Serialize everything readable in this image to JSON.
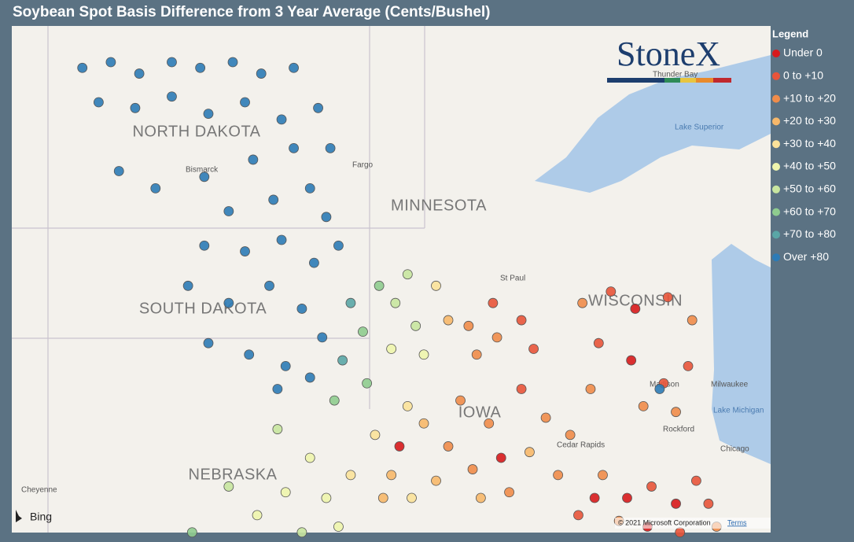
{
  "title": "Soybean Spot Basis Difference from 3 Year Average (Cents/Bushel)",
  "legend": {
    "title": "Legend",
    "items": [
      {
        "label": "Under 0",
        "color": "#d7191c"
      },
      {
        "label": "0 to +10",
        "color": "#e8543a"
      },
      {
        "label": "+10 to +20",
        "color": "#f08c4a"
      },
      {
        "label": "+20 to +30",
        "color": "#f7b86a"
      },
      {
        "label": "+30 to +40",
        "color": "#fbe29a"
      },
      {
        "label": "+40 to +50",
        "color": "#eef5ad"
      },
      {
        "label": "+50 to +60",
        "color": "#c8e6a0"
      },
      {
        "label": "+60 to +70",
        "color": "#8fcc8f"
      },
      {
        "label": "+70 to +80",
        "color": "#5aa6a6"
      },
      {
        "label": "Over +80",
        "color": "#2c7bb6"
      }
    ]
  },
  "logo": "StoneX",
  "map_labels": {
    "north_dakota": "NORTH DAKOTA",
    "minnesota": "MINNESOTA",
    "south_dakota": "SOUTH DAKOTA",
    "wisconsin": "WISCONSIN",
    "nebraska": "NEBRASKA",
    "iowa": "IOWA",
    "bismarck": "Bismarck",
    "fargo": "Fargo",
    "st_paul": "St Paul",
    "madison": "Madison",
    "milwaukee": "Milwaukee",
    "chicago": "Chicago",
    "cedar_rapids": "Cedar Rapids",
    "rockford": "Rockford",
    "cheyenne": "Cheyenne",
    "lake_superior": "Lake Superior",
    "lake_michigan": "Lake Michigan",
    "thunder_bay": "Thunder Bay"
  },
  "attribution": {
    "brand": "Bing",
    "copyright": "© 2021 Microsoft Corporation",
    "terms": "Terms"
  },
  "points": [
    [
      -103.2,
      48.7,
      9
    ],
    [
      -102.5,
      48.8,
      9
    ],
    [
      -101.8,
      48.6,
      9
    ],
    [
      -101,
      48.8,
      9
    ],
    [
      -100.3,
      48.7,
      9
    ],
    [
      -99.5,
      48.8,
      9
    ],
    [
      -98.8,
      48.6,
      9
    ],
    [
      -98,
      48.7,
      9
    ],
    [
      -102.8,
      48.1,
      9
    ],
    [
      -101.9,
      48,
      9
    ],
    [
      -101,
      48.2,
      9
    ],
    [
      -100.1,
      47.9,
      9
    ],
    [
      -99.2,
      48.1,
      9
    ],
    [
      -98.3,
      47.8,
      9
    ],
    [
      -97.4,
      48,
      9
    ],
    [
      -97.1,
      47.3,
      9
    ],
    [
      -98,
      47.3,
      9
    ],
    [
      -99,
      47.1,
      9
    ],
    [
      -100.2,
      46.8,
      9
    ],
    [
      -101.4,
      46.6,
      9
    ],
    [
      -102.3,
      46.9,
      9
    ],
    [
      -97.6,
      46.6,
      9
    ],
    [
      -98.5,
      46.4,
      9
    ],
    [
      -99.6,
      46.2,
      9
    ],
    [
      -97.2,
      46.1,
      9
    ],
    [
      -100.2,
      45.6,
      9
    ],
    [
      -99.2,
      45.5,
      9
    ],
    [
      -98.3,
      45.7,
      9
    ],
    [
      -97.5,
      45.3,
      9
    ],
    [
      -100.6,
      44.9,
      9
    ],
    [
      -99.6,
      44.6,
      9
    ],
    [
      -98.6,
      44.9,
      9
    ],
    [
      -97.8,
      44.5,
      9
    ],
    [
      -100.1,
      43.9,
      9
    ],
    [
      -99.1,
      43.7,
      9
    ],
    [
      -98.2,
      43.5,
      9
    ],
    [
      -97.3,
      44,
      9
    ],
    [
      -96.9,
      45.6,
      9
    ],
    [
      -98.4,
      43.1,
      9
    ],
    [
      -97.6,
      43.3,
      9
    ],
    [
      -96.6,
      44.6,
      8
    ],
    [
      -96.3,
      44.1,
      7
    ],
    [
      -96.8,
      43.6,
      8
    ],
    [
      -95.9,
      44.9,
      7
    ],
    [
      -96.2,
      43.2,
      7
    ],
    [
      -97,
      42.9,
      7
    ],
    [
      -95.5,
      44.6,
      6
    ],
    [
      -95,
      44.2,
      6
    ],
    [
      -95.6,
      43.8,
      5
    ],
    [
      -94.8,
      43.7,
      5
    ],
    [
      -95.2,
      45.1,
      6
    ],
    [
      -94.5,
      44.9,
      4
    ],
    [
      -94.2,
      44.3,
      3
    ],
    [
      -98.4,
      42.4,
      6
    ],
    [
      -97.6,
      41.9,
      5
    ],
    [
      -98.2,
      41.3,
      5
    ],
    [
      -97.2,
      41.2,
      5
    ],
    [
      -96.6,
      41.6,
      4
    ],
    [
      -96.9,
      40.7,
      5
    ],
    [
      -97.8,
      40.6,
      6
    ],
    [
      -98.9,
      40.9,
      5
    ],
    [
      -99.6,
      41.4,
      6
    ],
    [
      -100.5,
      40.6,
      7
    ],
    [
      -96,
      42.3,
      4
    ],
    [
      -95.6,
      41.6,
      3
    ],
    [
      -95.2,
      42.8,
      4
    ],
    [
      -95.8,
      41.2,
      3
    ],
    [
      -95.1,
      41.2,
      4
    ],
    [
      -95.4,
      42.1,
      0
    ],
    [
      -94.8,
      42.5,
      3
    ],
    [
      -94.2,
      42.1,
      2
    ],
    [
      -93.6,
      41.7,
      2
    ],
    [
      -93.2,
      42.5,
      2
    ],
    [
      -92.7,
      41.3,
      2
    ],
    [
      -92.2,
      42,
      3
    ],
    [
      -91.8,
      42.6,
      2
    ],
    [
      -91.5,
      41.6,
      2
    ],
    [
      -93.9,
      42.9,
      2
    ],
    [
      -92.4,
      43.1,
      1
    ],
    [
      -91.2,
      42.3,
      2
    ],
    [
      -93.4,
      41.2,
      3
    ],
    [
      -94.5,
      41.5,
      3
    ],
    [
      -92.9,
      41.9,
      0
    ],
    [
      -93.7,
      44.2,
      2
    ],
    [
      -93,
      44,
      2
    ],
    [
      -92.4,
      44.3,
      1
    ],
    [
      -93.5,
      43.7,
      2
    ],
    [
      -92.1,
      43.8,
      1
    ],
    [
      -93.1,
      44.6,
      1
    ],
    [
      -90.9,
      44.6,
      2
    ],
    [
      -90.2,
      44.8,
      1
    ],
    [
      -89.6,
      44.5,
      0
    ],
    [
      -88.8,
      44.7,
      1
    ],
    [
      -88.2,
      44.3,
      2
    ],
    [
      -90.5,
      43.9,
      1
    ],
    [
      -89.7,
      43.6,
      0
    ],
    [
      -88.9,
      43.2,
      1
    ],
    [
      -88.3,
      43.5,
      1
    ],
    [
      -90.7,
      43.1,
      2
    ],
    [
      -89.4,
      42.8,
      2
    ],
    [
      -88.6,
      42.7,
      2
    ],
    [
      -89,
      43.1,
      9
    ],
    [
      -90.4,
      41.6,
      2
    ],
    [
      -89.8,
      41.2,
      0
    ],
    [
      -89.2,
      41.4,
      1
    ],
    [
      -88.6,
      41.1,
      0
    ],
    [
      -88.1,
      41.5,
      1
    ],
    [
      -87.8,
      41.1,
      1
    ],
    [
      -90,
      40.8,
      2
    ],
    [
      -89.3,
      40.7,
      0
    ],
    [
      -88.5,
      40.6,
      1
    ],
    [
      -87.6,
      40.7,
      2
    ],
    [
      -91,
      40.9,
      1
    ],
    [
      -90.6,
      41.2,
      0
    ]
  ]
}
